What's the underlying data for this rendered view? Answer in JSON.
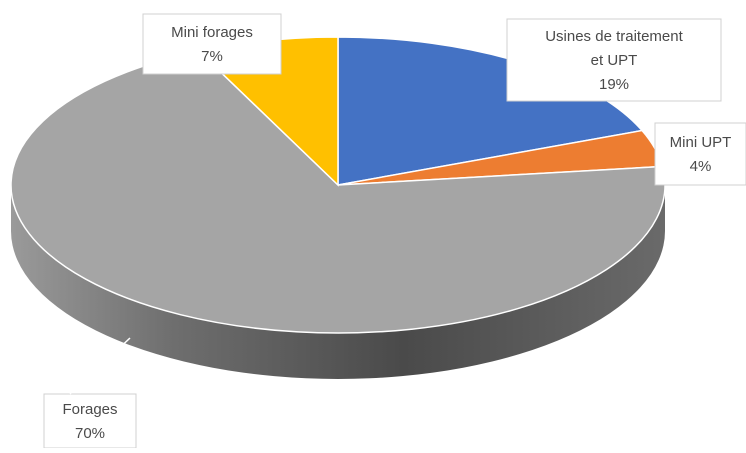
{
  "chart_data": {
    "type": "pie",
    "style": "3d-pie",
    "start_angle": "12 o'clock",
    "direction": "clockwise",
    "title": "",
    "slices": [
      {
        "label_lines": [
          "Usines de traitement",
          "et UPT"
        ],
        "pct_label": "19%",
        "value": 19,
        "color": "#4472C4"
      },
      {
        "label_lines": [
          "Mini UPT"
        ],
        "pct_label": "4%",
        "value": 4,
        "color": "#ED7D31"
      },
      {
        "label_lines": [
          "Forages"
        ],
        "pct_label": "70%",
        "value": 70,
        "color": "#A5A5A5"
      },
      {
        "label_lines": [
          "Mini forages"
        ],
        "pct_label": "7%",
        "value": 7,
        "color": "#FFC000"
      }
    ],
    "legend": "none",
    "data_labels": "callouts with category name and percentage"
  }
}
